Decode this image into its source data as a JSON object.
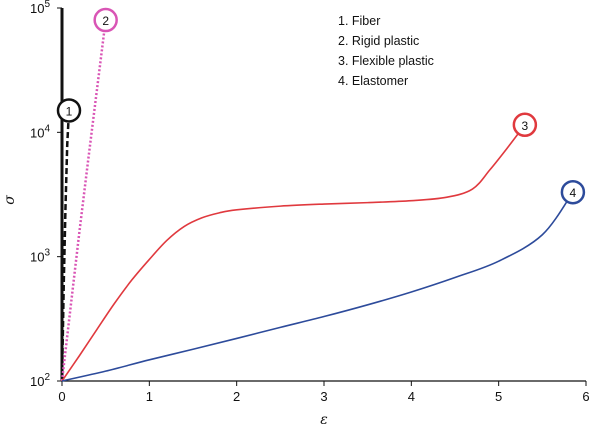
{
  "chart_data": {
    "type": "line",
    "title": "",
    "xlabel": "ε",
    "ylabel": "σ",
    "xlim": [
      0,
      6
    ],
    "ylim": [
      100,
      100000
    ],
    "yscale": "log",
    "grid": false,
    "legend_position": "top-right",
    "x_ticks": [
      "0",
      "1",
      "2",
      "3",
      "4",
      "5",
      "6"
    ],
    "y_ticks": [
      {
        "base": "10",
        "exp": "2"
      },
      {
        "base": "10",
        "exp": "3"
      },
      {
        "base": "10",
        "exp": "4"
      },
      {
        "base": "10",
        "exp": "5"
      }
    ],
    "legend": [
      "1. Fiber",
      "2. Rigid plastic",
      "3. Flexible plastic",
      "4. Elastomer"
    ],
    "series": [
      {
        "name": "1. Fiber",
        "marker": "1",
        "color": "#111111",
        "style": "dashed",
        "x": [
          0,
          0.02,
          0.04,
          0.06,
          0.08
        ],
        "y": [
          100,
          600,
          2500,
          8000,
          15000
        ]
      },
      {
        "name": "2. Rigid plastic",
        "marker": "2",
        "color": "#d955b5",
        "style": "dotted",
        "x": [
          0,
          0.1,
          0.2,
          0.3,
          0.4,
          0.5
        ],
        "y": [
          100,
          400,
          1600,
          6000,
          22000,
          80000
        ]
      },
      {
        "name": "3. Flexible plastic",
        "marker": "3",
        "color": "#e0393e",
        "style": "solid",
        "x": [
          0,
          0.2,
          0.4,
          0.6,
          0.8,
          1.0,
          1.2,
          1.4,
          1.6,
          1.8,
          2.0,
          2.5,
          3.0,
          3.5,
          4.0,
          4.4,
          4.7,
          4.9,
          5.1,
          5.3
        ],
        "y": [
          100,
          160,
          260,
          420,
          650,
          950,
          1350,
          1750,
          2050,
          2250,
          2380,
          2550,
          2650,
          2720,
          2820,
          3000,
          3500,
          5000,
          7500,
          11500
        ]
      },
      {
        "name": "4. Elastomer",
        "marker": "4",
        "color": "#2d4b9b",
        "style": "solid",
        "x": [
          0,
          0.5,
          1.0,
          1.5,
          2.0,
          2.5,
          3.0,
          3.5,
          4.0,
          4.5,
          5.0,
          5.5,
          5.85
        ],
        "y": [
          100,
          120,
          148,
          180,
          220,
          270,
          330,
          410,
          520,
          680,
          920,
          1500,
          3300
        ]
      }
    ]
  }
}
